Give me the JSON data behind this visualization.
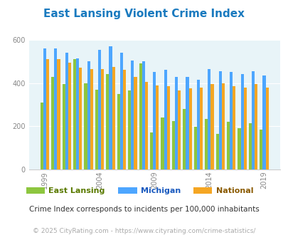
{
  "title": "East Lansing Violent Crime Index",
  "title_color": "#1a7abf",
  "subtitle": "Crime Index corresponds to incidents per 100,000 inhabitants",
  "footer": "© 2025 CityRating.com - https://www.cityrating.com/crime-statistics/",
  "years": [
    1999,
    2000,
    2001,
    2002,
    2003,
    2004,
    2005,
    2006,
    2007,
    2008,
    2009,
    2010,
    2011,
    2012,
    2013,
    2014,
    2015,
    2016,
    2017,
    2018,
    2019
  ],
  "east_lansing": [
    310,
    430,
    395,
    510,
    400,
    370,
    440,
    350,
    365,
    490,
    170,
    240,
    225,
    280,
    198,
    235,
    165,
    220,
    190,
    215,
    185
  ],
  "michigan": [
    560,
    560,
    540,
    515,
    500,
    555,
    570,
    540,
    505,
    500,
    450,
    460,
    430,
    430,
    415,
    465,
    455,
    450,
    440,
    455,
    435
  ],
  "national": [
    510,
    510,
    495,
    470,
    465,
    465,
    475,
    460,
    430,
    405,
    390,
    385,
    365,
    375,
    380,
    395,
    400,
    385,
    380,
    395,
    380
  ],
  "east_lansing_color": "#8dc63f",
  "michigan_color": "#4da6ff",
  "national_color": "#f5a623",
  "plot_bg": "#e8f4f8",
  "ylim": [
    0,
    600
  ],
  "yticks": [
    0,
    200,
    400,
    600
  ],
  "xtick_years": [
    1999,
    2004,
    2009,
    2014,
    2019
  ],
  "legend_labels": [
    "East Lansing",
    "Michigan",
    "National"
  ],
  "legend_colors": [
    "#8dc63f",
    "#4da6ff",
    "#f5a623"
  ],
  "legend_text_colors": [
    "#5a7a00",
    "#1a5abf",
    "#8a5a00"
  ],
  "subtitle_color": "#333333",
  "footer_color": "#aaaaaa"
}
